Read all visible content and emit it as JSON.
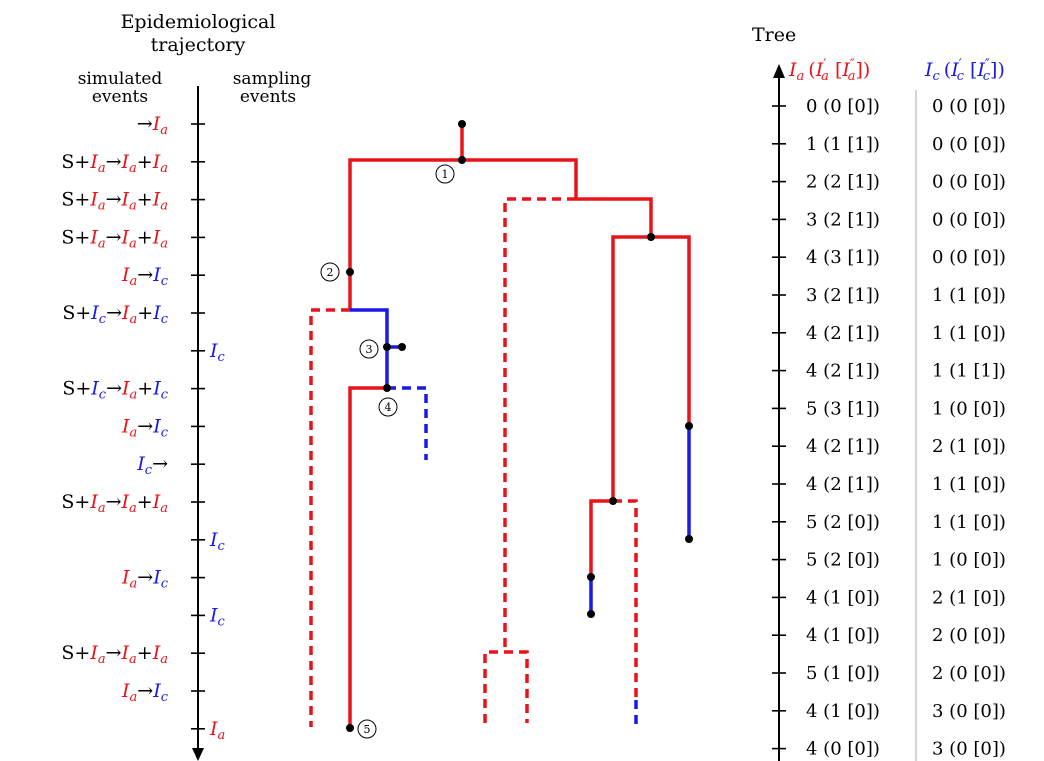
{
  "traj_title": [
    "Epidemiological",
    "trajectory"
  ],
  "col_simulated": [
    "simulated",
    "events"
  ],
  "col_sampling": [
    "sampling",
    "events"
  ],
  "tree_title": "Tree",
  "tree_header": {
    "ia": {
      "main": "I",
      "sub": "a",
      "rest": "(I′ₐ [I″ₐ])"
    },
    "ic": {
      "main": "I",
      "sub": "c",
      "rest": "(I′꜀ [I″꜀])"
    }
  },
  "simulated_events": [
    {
      "row": 0,
      "parts": [
        [
          "→",
          "k"
        ],
        [
          "I",
          "r"
        ],
        [
          "a",
          "rs"
        ]
      ]
    },
    {
      "row": 1,
      "parts": [
        [
          "S+",
          "k"
        ],
        [
          "I",
          "r"
        ],
        [
          "a",
          "rs"
        ],
        [
          "→",
          "k"
        ],
        [
          "I",
          "r"
        ],
        [
          "a",
          "rs"
        ],
        [
          "+",
          "k"
        ],
        [
          "I",
          "r"
        ],
        [
          "a",
          "rs"
        ]
      ]
    },
    {
      "row": 2,
      "parts": [
        [
          "S+",
          "k"
        ],
        [
          "I",
          "r"
        ],
        [
          "a",
          "rs"
        ],
        [
          "→",
          "k"
        ],
        [
          "I",
          "r"
        ],
        [
          "a",
          "rs"
        ],
        [
          "+",
          "k"
        ],
        [
          "I",
          "r"
        ],
        [
          "a",
          "rs"
        ]
      ]
    },
    {
      "row": 3,
      "parts": [
        [
          "S+",
          "k"
        ],
        [
          "I",
          "r"
        ],
        [
          "a",
          "rs"
        ],
        [
          "→",
          "k"
        ],
        [
          "I",
          "r"
        ],
        [
          "a",
          "rs"
        ],
        [
          "+",
          "k"
        ],
        [
          "I",
          "r"
        ],
        [
          "a",
          "rs"
        ]
      ]
    },
    {
      "row": 4,
      "parts": [
        [
          "I",
          "r"
        ],
        [
          "a",
          "rs"
        ],
        [
          "→",
          "k"
        ],
        [
          "I",
          "b"
        ],
        [
          "c",
          "bs"
        ]
      ]
    },
    {
      "row": 5,
      "parts": [
        [
          "S+",
          "k"
        ],
        [
          "I",
          "b"
        ],
        [
          "c",
          "bs"
        ],
        [
          "→",
          "k"
        ],
        [
          "I",
          "r"
        ],
        [
          "a",
          "rs"
        ],
        [
          "+",
          "k"
        ],
        [
          "I",
          "b"
        ],
        [
          "c",
          "bs"
        ]
      ]
    },
    {
      "row": 7,
      "parts": [
        [
          "S+",
          "k"
        ],
        [
          "I",
          "b"
        ],
        [
          "c",
          "bs"
        ],
        [
          "→",
          "k"
        ],
        [
          "I",
          "r"
        ],
        [
          "a",
          "rs"
        ],
        [
          "+",
          "k"
        ],
        [
          "I",
          "b"
        ],
        [
          "c",
          "bs"
        ]
      ]
    },
    {
      "row": 8,
      "parts": [
        [
          "I",
          "r"
        ],
        [
          "a",
          "rs"
        ],
        [
          "→",
          "k"
        ],
        [
          "I",
          "b"
        ],
        [
          "c",
          "bs"
        ]
      ]
    },
    {
      "row": 9,
      "parts": [
        [
          "I",
          "b"
        ],
        [
          "c",
          "bs"
        ],
        [
          "→",
          "k"
        ]
      ]
    },
    {
      "row": 10,
      "parts": [
        [
          "S+",
          "k"
        ],
        [
          "I",
          "r"
        ],
        [
          "a",
          "rs"
        ],
        [
          "→",
          "k"
        ],
        [
          "I",
          "r"
        ],
        [
          "a",
          "rs"
        ],
        [
          "+",
          "k"
        ],
        [
          "I",
          "r"
        ],
        [
          "a",
          "rs"
        ]
      ]
    },
    {
      "row": 12,
      "parts": [
        [
          "I",
          "r"
        ],
        [
          "a",
          "rs"
        ],
        [
          "→",
          "k"
        ],
        [
          "I",
          "b"
        ],
        [
          "c",
          "bs"
        ]
      ]
    },
    {
      "row": 14,
      "parts": [
        [
          "S+",
          "k"
        ],
        [
          "I",
          "r"
        ],
        [
          "a",
          "rs"
        ],
        [
          "→",
          "k"
        ],
        [
          "I",
          "r"
        ],
        [
          "a",
          "rs"
        ],
        [
          "+",
          "k"
        ],
        [
          "I",
          "r"
        ],
        [
          "a",
          "rs"
        ]
      ]
    },
    {
      "row": 15,
      "parts": [
        [
          "I",
          "r"
        ],
        [
          "a",
          "rs"
        ],
        [
          "→",
          "k"
        ],
        [
          "I",
          "b"
        ],
        [
          "c",
          "bs"
        ]
      ]
    }
  ],
  "sampling_events": [
    {
      "row": 6,
      "label": "I",
      "sub": "c",
      "color": "blue"
    },
    {
      "row": 11,
      "label": "I",
      "sub": "c",
      "color": "blue"
    },
    {
      "row": 13,
      "label": "I",
      "sub": "c",
      "color": "blue"
    },
    {
      "row": 16,
      "label": "I",
      "sub": "a",
      "color": "red"
    }
  ],
  "node_labels": [
    "1",
    "2",
    "3",
    "4",
    "5"
  ],
  "table_rows": [
    [
      "0 (0 [0])",
      "0 (0 [0])"
    ],
    [
      "1 (1 [1])",
      "0 (0 [0])"
    ],
    [
      "2 (2 [1])",
      "0 (0 [0])"
    ],
    [
      "3 (2 [1])",
      "0 (0 [0])"
    ],
    [
      "4 (3 [1])",
      "0 (0 [0])"
    ],
    [
      "3 (2 [1])",
      "1 (1 [0])"
    ],
    [
      "4 (2 [1])",
      "1 (1 [0])"
    ],
    [
      "4 (2 [1])",
      "1 (1 [1])"
    ],
    [
      "5 (3 [1])",
      "1 (0 [0])"
    ],
    [
      "4 (2 [1])",
      "2 (1 [0])"
    ],
    [
      "4 (2 [1])",
      "1 (1 [0])"
    ],
    [
      "5 (2 [0])",
      "1 (1 [0])"
    ],
    [
      "5 (2 [0])",
      "1 (0 [0])"
    ],
    [
      "4 (1 [0])",
      "2 (1 [0])"
    ],
    [
      "4 (1 [0])",
      "2 (0 [0])"
    ],
    [
      "5 (1 [0])",
      "2 (0 [0])"
    ],
    [
      "4 (1 [0])",
      "3 (0 [0])"
    ],
    [
      "4 (0 [0])",
      "3 (0 [0])"
    ]
  ],
  "colors": {
    "red": "#e8141a",
    "blue": "#1a1ae6",
    "black": "#000000"
  }
}
